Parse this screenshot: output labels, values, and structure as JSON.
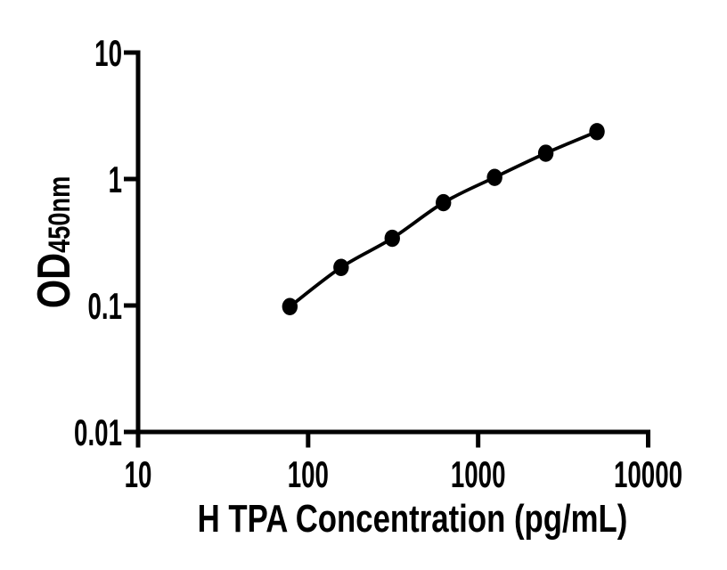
{
  "chart_data": {
    "type": "scatter",
    "title": "",
    "xlabel": "H TPA Concentration (pg/mL)",
    "ylabel": "OD450nm",
    "ylabel_main": "OD",
    "ylabel_sub": "450nm",
    "x_scale": "log",
    "y_scale": "log",
    "xlim": [
      10,
      10000
    ],
    "ylim": [
      0.01,
      10
    ],
    "x_ticks": [
      10,
      100,
      1000,
      10000
    ],
    "x_tick_labels": [
      "10",
      "100",
      "1000",
      "10000"
    ],
    "y_ticks": [
      10,
      1,
      0.1,
      0.01
    ],
    "y_tick_labels": [
      "10",
      "1",
      "0.1",
      "0.01"
    ],
    "grid": false,
    "legend": false,
    "axis_color": "#000000",
    "line_color": "#000000",
    "marker_color": "#000000",
    "background": "#ffffff",
    "series": [
      {
        "marker": "filled-circle",
        "x": [
          78.1,
          156.3,
          312.5,
          625,
          1250,
          2500,
          5000
        ],
        "y": [
          0.098,
          0.2,
          0.34,
          0.65,
          1.03,
          1.6,
          2.37
        ]
      }
    ]
  }
}
